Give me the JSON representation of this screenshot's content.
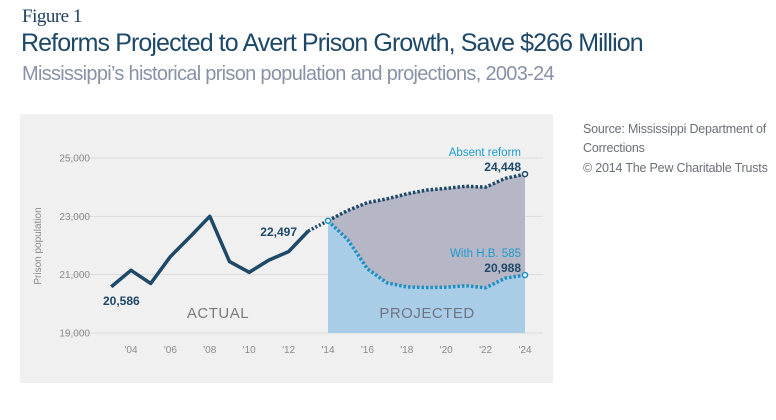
{
  "figure_label": "Figure 1",
  "title": "Reforms Projected to Avert Prison Growth, Save $266 Million",
  "subtitle": "Mississippi’s historical prison population and projections, 2003-24",
  "source": "Source: Mississippi Department of Corrections",
  "copyright": "© 2014 The Pew Charitable Trusts",
  "chart_data": {
    "type": "line",
    "xlabel": "",
    "ylabel": "Prison population",
    "xlim": [
      2003,
      2024
    ],
    "ylim": [
      19000,
      25000
    ],
    "y_ticks": [
      19000,
      21000,
      23000,
      25000
    ],
    "y_tick_labels": [
      "19,000",
      "21,000",
      "23,000",
      "25,000"
    ],
    "x_ticks": [
      2004,
      2006,
      2008,
      2010,
      2012,
      2014,
      2016,
      2018,
      2020,
      2022,
      2024
    ],
    "x_tick_labels": [
      "'04",
      "'06",
      "'08",
      "'10",
      "'12",
      "'14",
      "'16",
      "'18",
      "'20",
      "'22",
      "'24"
    ],
    "grid": "horizontal",
    "region_labels": {
      "actual": "ACTUAL",
      "projected": "PROJECTED"
    },
    "series": [
      {
        "key": "actual",
        "x": [
          2003,
          2004,
          2005,
          2006,
          2007,
          2008,
          2009,
          2010,
          2011,
          2012,
          2013,
          2014
        ],
        "values": [
          20586,
          21150,
          20700,
          21620,
          22300,
          23000,
          21450,
          21080,
          21500,
          21790,
          22497,
          22850
        ]
      },
      {
        "key": "absent",
        "name": "Absent reform",
        "x": [
          2014,
          2015,
          2016,
          2017,
          2018,
          2019,
          2020,
          2021,
          2022,
          2023,
          2024
        ],
        "values": [
          22850,
          23200,
          23470,
          23600,
          23770,
          23900,
          23960,
          24030,
          24000,
          24300,
          24448
        ]
      },
      {
        "key": "with",
        "name": "With H.B. 585",
        "x": [
          2014,
          2015,
          2016,
          2017,
          2018,
          2019,
          2020,
          2021,
          2022,
          2023,
          2024
        ],
        "values": [
          22850,
          22200,
          21200,
          20720,
          20580,
          20560,
          20570,
          20620,
          20550,
          20880,
          20988
        ]
      }
    ],
    "data_labels": [
      {
        "x": 2003,
        "value": 20586,
        "text": "20,586"
      },
      {
        "x": 2013,
        "value": 22497,
        "text": "22,497"
      },
      {
        "x": 2024,
        "value": 24448,
        "text": "24,448"
      },
      {
        "x": 2024,
        "value": 20988,
        "text": "20,988"
      }
    ],
    "colors": {
      "actual": "#1d4868",
      "absent": "#1d4868",
      "with": "#1a8fc4",
      "absent_fill": "#b5b7c6",
      "with_fill": "#a9cde6",
      "panel": "#f0f0f0",
      "series_label": "#1a9bd0"
    }
  }
}
